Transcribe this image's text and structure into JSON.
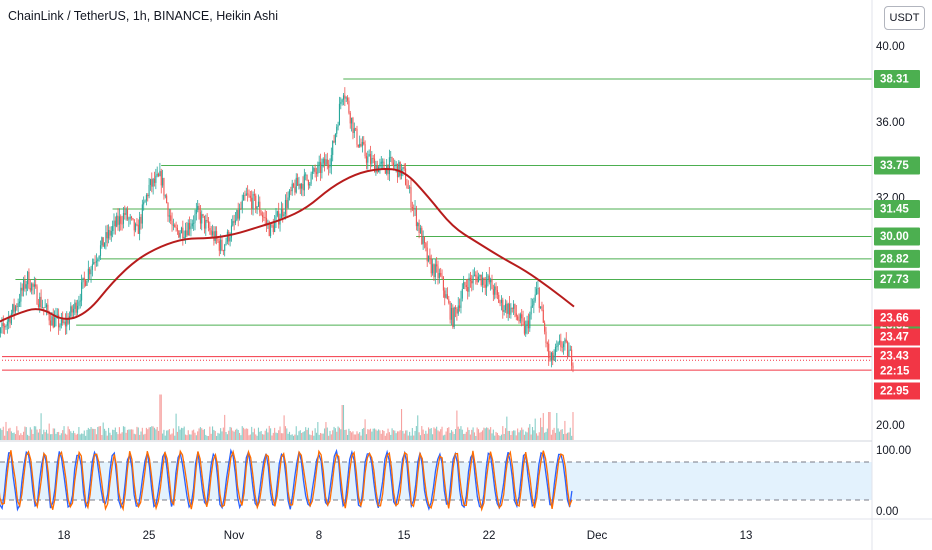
{
  "header": {
    "title": "ChainLink / TetherUS, 1h, BINANCE, Heikin Ashi",
    "currency": "USDT"
  },
  "colors": {
    "up": "#26a69a",
    "down": "#ef5350",
    "ma": "#b71c1c",
    "level_line": "#4caf50",
    "level_badge": "#4caf50",
    "price_badge": "#f23645",
    "stoch_k": "#2962ff",
    "stoch_d": "#ff6d00",
    "stoch_band": "#e3f2fd"
  },
  "chart_data": {
    "type": "candlestick",
    "symbol": "ChainLink / TetherUS",
    "interval": "1h",
    "exchange": "BINANCE",
    "style": "Heikin Ashi",
    "x_ticks": [
      "18",
      "25",
      "Nov",
      "8",
      "15",
      "22",
      "Dec",
      "13"
    ],
    "y_ticks": [
      "40.00",
      "36.00",
      "32.00",
      "20.00"
    ],
    "ylim": [
      18.5,
      41.5
    ],
    "price_path": [
      {
        "x": "Oct 12",
        "y": 23.8
      },
      {
        "x": "Oct 13",
        "y": 25.2
      },
      {
        "x": "Oct 14",
        "y": 26.3
      },
      {
        "x": "Oct 15",
        "y": 27.8
      },
      {
        "x": "Oct 16",
        "y": 26.6
      },
      {
        "x": "Oct 17",
        "y": 25.6
      },
      {
        "x": "Oct 18",
        "y": 25.3
      },
      {
        "x": "Oct 19",
        "y": 26.4
      },
      {
        "x": "Oct 20",
        "y": 28.2
      },
      {
        "x": "Oct 21",
        "y": 29.4
      },
      {
        "x": "Oct 22",
        "y": 30.4
      },
      {
        "x": "Oct 23",
        "y": 31.2
      },
      {
        "x": "Oct 24",
        "y": 30.2
      },
      {
        "x": "Oct 25",
        "y": 32.6
      },
      {
        "x": "Oct 26",
        "y": 33.1
      },
      {
        "x": "Oct 27",
        "y": 30.2
      },
      {
        "x": "Oct 28",
        "y": 30.4
      },
      {
        "x": "Oct 29",
        "y": 31.2
      },
      {
        "x": "Oct 30",
        "y": 30.3
      },
      {
        "x": "Oct 31",
        "y": 29.4
      },
      {
        "x": "Nov 1",
        "y": 30.6
      },
      {
        "x": "Nov 2",
        "y": 32.1
      },
      {
        "x": "Nov 3",
        "y": 31.6
      },
      {
        "x": "Nov 4",
        "y": 30.3
      },
      {
        "x": "Nov 5",
        "y": 31.4
      },
      {
        "x": "Nov 6",
        "y": 32.6
      },
      {
        "x": "Nov 7",
        "y": 33.0
      },
      {
        "x": "Nov 8",
        "y": 33.5
      },
      {
        "x": "Nov 9",
        "y": 34.2
      },
      {
        "x": "Nov 10",
        "y": 37.9
      },
      {
        "x": "Nov 11",
        "y": 35.3
      },
      {
        "x": "Nov 12",
        "y": 34.1
      },
      {
        "x": "Nov 13",
        "y": 33.6
      },
      {
        "x": "Nov 14",
        "y": 33.8
      },
      {
        "x": "Nov 15",
        "y": 33.3
      },
      {
        "x": "Nov 16",
        "y": 31.0
      },
      {
        "x": "Nov 17",
        "y": 28.6
      },
      {
        "x": "Nov 18",
        "y": 27.8
      },
      {
        "x": "Nov 19",
        "y": 25.6
      },
      {
        "x": "Nov 20",
        "y": 27.4
      },
      {
        "x": "Nov 21",
        "y": 27.9
      },
      {
        "x": "Nov 22",
        "y": 27.6
      },
      {
        "x": "Nov 23",
        "y": 26.4
      },
      {
        "x": "Nov 24",
        "y": 26.1
      },
      {
        "x": "Nov 25",
        "y": 25.0
      },
      {
        "x": "Nov 26",
        "y": 27.2
      },
      {
        "x": "Nov 27",
        "y": 23.3
      },
      {
        "x": "Nov 28",
        "y": 24.4
      },
      {
        "x": "Nov 29",
        "y": 23.4
      }
    ],
    "moving_average": [
      {
        "x": "Oct 12",
        "y": 25.3
      },
      {
        "x": "Oct 14",
        "y": 25.9
      },
      {
        "x": "Oct 16",
        "y": 26.3
      },
      {
        "x": "Oct 18",
        "y": 25.5
      },
      {
        "x": "Oct 20",
        "y": 26.0
      },
      {
        "x": "Oct 22",
        "y": 27.6
      },
      {
        "x": "Oct 24",
        "y": 28.8
      },
      {
        "x": "Oct 26",
        "y": 29.5
      },
      {
        "x": "Oct 28",
        "y": 29.9
      },
      {
        "x": "Oct 30",
        "y": 29.9
      },
      {
        "x": "Nov 1",
        "y": 30.1
      },
      {
        "x": "Nov 3",
        "y": 30.5
      },
      {
        "x": "Nov 5",
        "y": 30.9
      },
      {
        "x": "Nov 7",
        "y": 31.5
      },
      {
        "x": "Nov 9",
        "y": 32.6
      },
      {
        "x": "Nov 11",
        "y": 33.3
      },
      {
        "x": "Nov 13",
        "y": 33.6
      },
      {
        "x": "Nov 15",
        "y": 33.5
      },
      {
        "x": "Nov 17",
        "y": 32.1
      },
      {
        "x": "Nov 19",
        "y": 30.5
      },
      {
        "x": "Nov 21",
        "y": 29.7
      },
      {
        "x": "Nov 23",
        "y": 28.9
      },
      {
        "x": "Nov 25",
        "y": 28.2
      },
      {
        "x": "Nov 27",
        "y": 27.3
      },
      {
        "x": "Nov 29",
        "y": 26.3
      }
    ],
    "horizontal_levels": [
      {
        "value": "38.31",
        "y": 38.31,
        "from": "Nov 10"
      },
      {
        "value": "33.75",
        "y": 33.75,
        "from": "Oct 26"
      },
      {
        "value": "31.45",
        "y": 31.45,
        "from": "Oct 22"
      },
      {
        "value": "30.00",
        "y": 30.0,
        "from": "Nov 16"
      },
      {
        "value": "28.82",
        "y": 28.82,
        "from": "Oct 21"
      },
      {
        "value": "27.73",
        "y": 27.73,
        "from": "Oct 14"
      },
      {
        "value": "25.32",
        "y": 25.32,
        "from": "Oct 19"
      }
    ],
    "price_badges": [
      {
        "label": "23.66",
        "y": 23.66
      },
      {
        "label": "23.47",
        "y": 23.47
      },
      {
        "label": "23.43",
        "y": 23.43
      },
      {
        "label": "22:15",
        "y": 23.2
      },
      {
        "label": "22.95",
        "y": 22.95
      }
    ],
    "volume_spikes": [
      {
        "x": "Oct 26",
        "level": 0.65
      },
      {
        "x": "Nov 10",
        "level": 0.5
      },
      {
        "x": "Nov 27",
        "level": 0.4
      }
    ],
    "stochastic": {
      "y_ticks": [
        "100.00",
        "0.00"
      ],
      "upper_band": 80,
      "lower_band": 20
    }
  }
}
